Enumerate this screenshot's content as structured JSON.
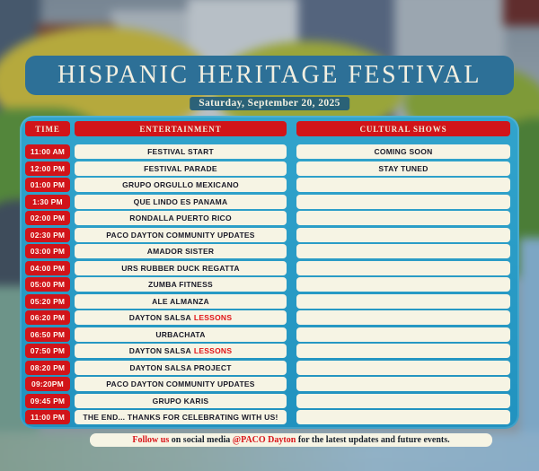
{
  "title": "HISPANIC HERITAGE FESTIVAL",
  "date": "Saturday, September 20, 2025",
  "table": {
    "headers": [
      "TIME",
      "ENTERTAINMENT",
      "CULTURAL SHOWS"
    ],
    "rows": [
      {
        "time": "11:00 AM",
        "entertainment": "FESTIVAL START",
        "entertainment_accent": "",
        "cultural": "COMING SOON"
      },
      {
        "time": "12:00 PM",
        "entertainment": "FESTIVAL PARADE",
        "entertainment_accent": "",
        "cultural": "STAY TUNED"
      },
      {
        "time": "01:00 PM",
        "entertainment": "GRUPO ORGULLO MEXICANO",
        "entertainment_accent": "",
        "cultural": ""
      },
      {
        "time": "1:30 PM",
        "entertainment": "QUE LINDO ES PANAMA",
        "entertainment_accent": "",
        "cultural": ""
      },
      {
        "time": "02:00 PM",
        "entertainment": "RONDALLA PUERTO RICO",
        "entertainment_accent": "",
        "cultural": ""
      },
      {
        "time": "02:30 PM",
        "entertainment": "PACO DAYTON COMMUNITY UPDATES",
        "entertainment_accent": "",
        "cultural": ""
      },
      {
        "time": "03:00 PM",
        "entertainment": "AMADOR SISTER",
        "entertainment_accent": "",
        "cultural": ""
      },
      {
        "time": "04:00 PM",
        "entertainment": "URS RUBBER DUCK REGATTA",
        "entertainment_accent": "",
        "cultural": ""
      },
      {
        "time": "05:00 PM",
        "entertainment": "ZUMBA FITNESS",
        "entertainment_accent": "",
        "cultural": ""
      },
      {
        "time": "05:20 PM",
        "entertainment": "ALE ALMANZA",
        "entertainment_accent": "",
        "cultural": ""
      },
      {
        "time": "06:20 PM",
        "entertainment": "DAYTON SALSA",
        "entertainment_accent": "LESSONS",
        "cultural": ""
      },
      {
        "time": "06:50 PM",
        "entertainment": "URBACHATA",
        "entertainment_accent": "",
        "cultural": ""
      },
      {
        "time": "07:50 PM",
        "entertainment": "DAYTON SALSA",
        "entertainment_accent": "LESSONS",
        "cultural": ""
      },
      {
        "time": "08:20 PM",
        "entertainment": "DAYTON SALSA PROJECT",
        "entertainment_accent": "",
        "cultural": ""
      },
      {
        "time": "09:20PM",
        "entertainment": "PACO DAYTON COMMUNITY UPDATES",
        "entertainment_accent": "",
        "cultural": ""
      },
      {
        "time": "09:45 PM",
        "entertainment": "GRUPO KARIS",
        "entertainment_accent": "",
        "cultural": ""
      },
      {
        "time": "11:00 PM",
        "entertainment": "THE END... THANKS FOR CELEBRATING WITH US!",
        "entertainment_accent": "",
        "cultural": ""
      }
    ]
  },
  "footer": {
    "parts": [
      {
        "text": "Follow us",
        "style": "red"
      },
      {
        "text": " on social media ",
        "style": "dark"
      },
      {
        "text": "@PACO Dayton",
        "style": "red"
      },
      {
        "text": " for the latest updates and future events.",
        "style": "dark"
      }
    ]
  },
  "colors": {
    "accent_red": "#d11419",
    "panel_teal": "#2798c4",
    "banner_blue": "#2d7097",
    "cream": "#f6f4e4"
  }
}
